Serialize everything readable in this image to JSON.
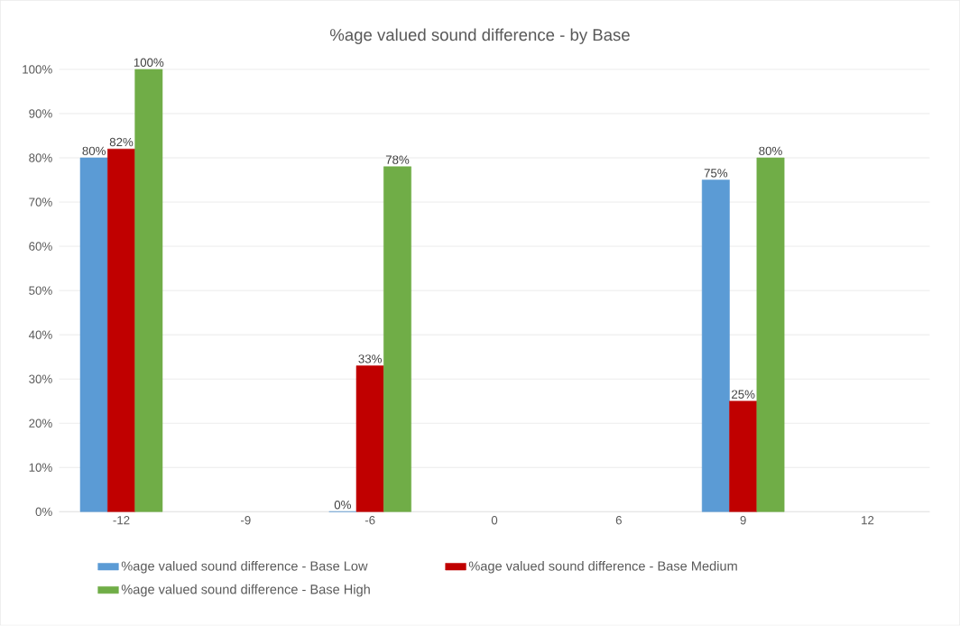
{
  "chart_data": {
    "type": "bar",
    "title": "%age valued sound difference - by Base",
    "categories": [
      "-12",
      "-9",
      "-6",
      "0",
      "6",
      "9",
      "12"
    ],
    "series": [
      {
        "name": "%age valued sound difference - Base Low",
        "color": "#5b9bd5",
        "values": [
          80,
          null,
          0,
          null,
          null,
          75,
          null
        ],
        "value_labels": [
          "80%",
          null,
          "0%",
          null,
          null,
          "75%",
          null
        ]
      },
      {
        "name": "%age valued sound difference - Base Medium",
        "color": "#c00000",
        "values": [
          82,
          null,
          33,
          null,
          null,
          25,
          null
        ],
        "value_labels": [
          "82%",
          null,
          "33%",
          null,
          null,
          "25%",
          null
        ]
      },
      {
        "name": "%age valued sound difference - Base High",
        "color": "#70ad47",
        "values": [
          100,
          null,
          78,
          null,
          null,
          80,
          null
        ],
        "value_labels": [
          "100%",
          null,
          "78%",
          null,
          null,
          "80%",
          null
        ]
      }
    ],
    "ylim": [
      0,
      100
    ],
    "yticks": [
      {
        "value": 0,
        "label": "0%"
      },
      {
        "value": 10,
        "label": "10%"
      },
      {
        "value": 20,
        "label": "20%"
      },
      {
        "value": 30,
        "label": "30%"
      },
      {
        "value": 40,
        "label": "40%"
      },
      {
        "value": 50,
        "label": "50%"
      },
      {
        "value": 60,
        "label": "60%"
      },
      {
        "value": 70,
        "label": "70%"
      },
      {
        "value": 80,
        "label": "80%"
      },
      {
        "value": 90,
        "label": "90%"
      },
      {
        "value": 100,
        "label": "100%"
      }
    ],
    "grid": "y",
    "legend": "bottom"
  }
}
